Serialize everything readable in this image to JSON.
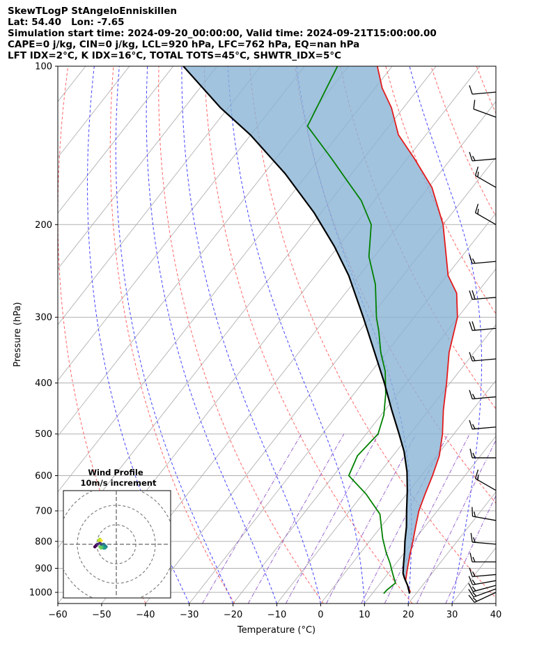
{
  "header": {
    "line1": "SkewTLogP StAngeloEnniskillen",
    "line2": "Lat: 54.40   Lon: -7.65",
    "line3": "Simulation start time: 2024-09-20_00:00:00, Valid time: 2024-09-21T15:00:00.00",
    "line4": "CAPE=0 j/kg, CIN=0 j/kg, LCL=920 hPa, LFC=762 hPa, EQ=nan hPa",
    "line5": "LFT IDX=2°C, K IDX=16°C, TOTAL TOTS=45°C, SHWTR_IDX=5°C"
  },
  "chart_data": {
    "type": "line",
    "title": "SkewTLogP StAngeloEnniskillen",
    "xlabel": "Temperature (°C)",
    "ylabel": "Pressure (hPa)",
    "xlim": [
      -60,
      40
    ],
    "ylim": [
      1050,
      100
    ],
    "x_ticks": [
      -60,
      -50,
      -40,
      -30,
      -20,
      -10,
      0,
      10,
      20,
      30,
      40
    ],
    "x_tick_labels": [
      "−60",
      "−50",
      "−40",
      "−30",
      "−20",
      "−10",
      "0",
      "10",
      "20",
      "30",
      "40"
    ],
    "y_ticks": [
      100,
      200,
      300,
      400,
      500,
      600,
      700,
      800,
      900,
      1000
    ],
    "y_tick_labels": [
      "100",
      "200",
      "300",
      "400",
      "500",
      "600",
      "700",
      "800",
      "900",
      "1000"
    ],
    "series": [
      {
        "name": "Temperature",
        "color": "#e31a1c",
        "points": [
          [
            18.5,
            1000
          ],
          [
            15.3,
            950
          ],
          [
            13.5,
            900
          ],
          [
            11.7,
            850
          ],
          [
            9.9,
            800
          ],
          [
            7.9,
            750
          ],
          [
            5.8,
            700
          ],
          [
            4.2,
            650
          ],
          [
            2.6,
            600
          ],
          [
            0.6,
            550
          ],
          [
            -2.6,
            500
          ],
          [
            -6.7,
            450
          ],
          [
            -10.8,
            400
          ],
          [
            -15.7,
            350
          ],
          [
            -20.1,
            300
          ],
          [
            -24.6,
            270
          ],
          [
            -29.7,
            250
          ],
          [
            -40.0,
            200
          ],
          [
            -49.2,
            170
          ],
          [
            -58.3,
            150
          ],
          [
            -66.3,
            135
          ],
          [
            -72.7,
            120
          ],
          [
            -78.4,
            110
          ],
          [
            -83.4,
            100
          ]
        ]
      },
      {
        "name": "Dewpoint",
        "color": "#008000",
        "points": [
          [
            12.6,
            1005
          ],
          [
            12.7,
            990
          ],
          [
            13.4,
            960
          ],
          [
            11.0,
            920
          ],
          [
            8.6,
            880
          ],
          [
            5.8,
            840
          ],
          [
            2.5,
            790
          ],
          [
            -2.5,
            710
          ],
          [
            -9.3,
            650
          ],
          [
            -16.5,
            600
          ],
          [
            -18.1,
            550
          ],
          [
            -17.3,
            500
          ],
          [
            -19.4,
            460
          ],
          [
            -22.7,
            420
          ],
          [
            -26.9,
            380
          ],
          [
            -31.3,
            350
          ],
          [
            -35.4,
            320
          ],
          [
            -38.6,
            300
          ],
          [
            -44.7,
            260
          ],
          [
            -51.2,
            230
          ],
          [
            -56.4,
            200
          ],
          [
            -63.0,
            180
          ],
          [
            -69.8,
            165
          ],
          [
            -77.2,
            150
          ],
          [
            -88.6,
            130
          ],
          [
            -92.5,
            100
          ]
        ]
      },
      {
        "name": "Parcel profile",
        "color": "#000000",
        "points": [
          [
            18.5,
            1005
          ],
          [
            16.6,
            970
          ],
          [
            14.6,
            940
          ],
          [
            13.4,
            920
          ],
          [
            11.7,
            880
          ],
          [
            10.0,
            840
          ],
          [
            8.1,
            800
          ],
          [
            5.8,
            750
          ],
          [
            3.0,
            700
          ],
          [
            -0.5,
            640
          ],
          [
            -3.9,
            590
          ],
          [
            -8.2,
            540
          ],
          [
            -12.5,
            500
          ],
          [
            -18.5,
            450
          ],
          [
            -25.0,
            400
          ],
          [
            -32.7,
            350
          ],
          [
            -41.6,
            300
          ],
          [
            -52.4,
            250
          ],
          [
            -60.9,
            220
          ],
          [
            -71.5,
            190
          ],
          [
            -85.2,
            160
          ],
          [
            -100.1,
            135
          ],
          [
            -111.7,
            120
          ],
          [
            -127.7,
            100
          ]
        ]
      }
    ],
    "reference_lines": {
      "dry_adiabats_K": [
        230,
        250,
        270,
        290,
        310,
        330,
        350,
        370,
        390,
        410,
        430
      ],
      "moist_adiabats_C": [
        -30,
        -20,
        -10,
        0,
        10,
        20,
        30
      ],
      "mixing_ratio_g_per_kg": [
        0.4,
        1,
        2,
        4,
        7,
        10,
        16,
        24
      ],
      "isotherm_spacing_C": 10
    },
    "wind_barbs": [
      {
        "p": 1000,
        "speed_kt": 15,
        "dir_deg": 245
      },
      {
        "p": 985,
        "speed_kt": 15,
        "dir_deg": 250
      },
      {
        "p": 970,
        "speed_kt": 15,
        "dir_deg": 255
      },
      {
        "p": 950,
        "speed_kt": 15,
        "dir_deg": 260
      },
      {
        "p": 925,
        "speed_kt": 15,
        "dir_deg": 265
      },
      {
        "p": 875,
        "speed_kt": 15,
        "dir_deg": 270
      },
      {
        "p": 810,
        "speed_kt": 15,
        "dir_deg": 275
      },
      {
        "p": 730,
        "speed_kt": 15,
        "dir_deg": 280
      },
      {
        "p": 640,
        "speed_kt": 15,
        "dir_deg": 300
      },
      {
        "p": 555,
        "speed_kt": 15,
        "dir_deg": 270
      },
      {
        "p": 485,
        "speed_kt": 15,
        "dir_deg": 265
      },
      {
        "p": 425,
        "speed_kt": 15,
        "dir_deg": 265
      },
      {
        "p": 360,
        "speed_kt": 15,
        "dir_deg": 265
      },
      {
        "p": 315,
        "speed_kt": 20,
        "dir_deg": 265
      },
      {
        "p": 275,
        "speed_kt": 20,
        "dir_deg": 265
      },
      {
        "p": 235,
        "speed_kt": 15,
        "dir_deg": 265
      },
      {
        "p": 200,
        "speed_kt": 15,
        "dir_deg": 300
      },
      {
        "p": 170,
        "speed_kt": 15,
        "dir_deg": 300
      },
      {
        "p": 150,
        "speed_kt": 15,
        "dir_deg": 265
      },
      {
        "p": 125,
        "speed_kt": 10,
        "dir_deg": 290
      },
      {
        "p": 112,
        "speed_kt": 10,
        "dir_deg": 265
      }
    ],
    "hodograph": {
      "title": "Wind Profile",
      "subtitle": "10m/s increment",
      "ring_step_ms": 10,
      "points": [
        [
          -6,
          -2
        ],
        [
          -5,
          -1
        ],
        [
          -4,
          0
        ],
        [
          -2,
          1
        ],
        [
          -1,
          0
        ],
        [
          0,
          -1
        ],
        [
          1,
          0
        ],
        [
          2,
          -1
        ],
        [
          3,
          -2
        ],
        [
          2,
          -3
        ],
        [
          1,
          -3
        ],
        [
          0,
          -2
        ],
        [
          -1,
          -3
        ],
        [
          -2,
          -2
        ],
        [
          -3,
          3
        ],
        [
          -2,
          4
        ],
        [
          -1,
          3
        ]
      ]
    }
  },
  "colors": {
    "temperature": "#e31a1c",
    "dewpoint": "#008000",
    "parcel": "#000000",
    "cape_fill": "#8ab4d6",
    "isotherm": "#b0b0b0",
    "dry_adiabat": "#ff6666",
    "moist_adiabat": "#4444ff",
    "mixing_ratio": "#9966cc"
  }
}
